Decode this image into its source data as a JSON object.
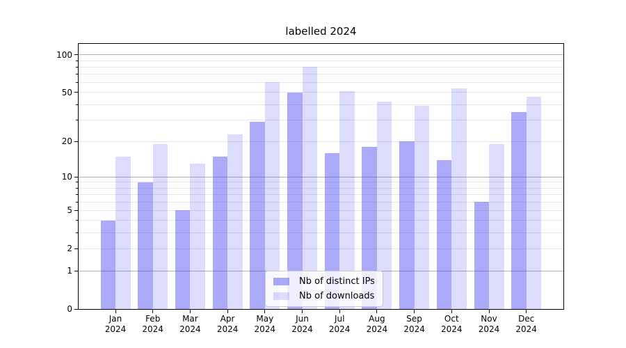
{
  "chart_data": {
    "type": "bar",
    "title": "labelled 2024",
    "categories": [
      "Jan 2024",
      "Feb 2024",
      "Mar 2024",
      "Apr 2024",
      "May 2024",
      "Jun 2024",
      "Jul 2024",
      "Aug 2024",
      "Sep 2024",
      "Oct 2024",
      "Nov 2024",
      "Dec 2024"
    ],
    "x_tick_line1": [
      "Jan",
      "Feb",
      "Mar",
      "Apr",
      "May",
      "Jun",
      "Jul",
      "Aug",
      "Sep",
      "Oct",
      "Nov",
      "Dec"
    ],
    "x_tick_line2": "2024",
    "series": [
      {
        "name": "Nb of distinct IPs",
        "fill": "rgba(70,70,240,0.46)",
        "values": [
          4,
          9,
          5,
          15,
          29,
          50,
          16,
          18,
          20,
          14,
          6,
          35
        ]
      },
      {
        "name": "Nb of downloads",
        "fill": "rgba(70,70,240,0.19)",
        "values": [
          15,
          19,
          13,
          23,
          61,
          80,
          51,
          42,
          39,
          54,
          19,
          46
        ]
      }
    ],
    "xlabel": "",
    "ylabel": "",
    "yscale": "log1p",
    "ylim": [
      0,
      124
    ],
    "yticks_labeled": [
      0,
      1,
      2,
      5,
      10,
      20,
      50,
      100
    ],
    "yticks_minor": [
      3,
      4,
      6,
      7,
      8,
      9,
      30,
      40,
      60,
      70,
      80,
      90
    ],
    "gridlines_dark": [
      1,
      10,
      100
    ],
    "gridlines_light": [
      2,
      3,
      4,
      5,
      6,
      7,
      8,
      9,
      20,
      30,
      40,
      50,
      60,
      70,
      80,
      90
    ],
    "grid": true,
    "legend": {
      "location": "lower center",
      "entries": [
        "Nb of distinct IPs",
        "Nb of downloads"
      ]
    }
  },
  "colors": {
    "background": "#ffffff",
    "bar_base": "#4646f0",
    "grid_dark": "#b3b3b3",
    "grid_light": "#e7e7e7",
    "axis": "#000000",
    "text": "#000000",
    "legend_bg": "rgba(255,255,255,0.8)",
    "legend_border": "#cccccc"
  }
}
